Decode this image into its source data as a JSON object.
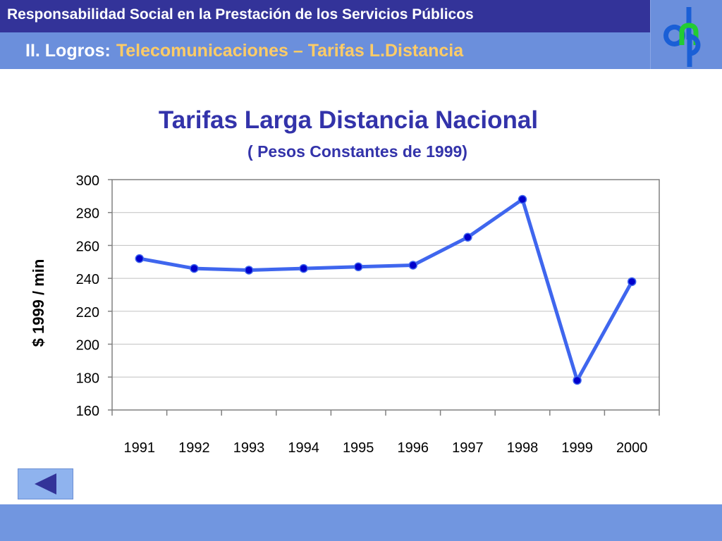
{
  "header": {
    "title": "Responsabilidad Social en la Prestación de los Servicios Públicos",
    "section_label": "II. Logros:",
    "section_topic": "Telecomunicaciones – Tarifas L.Distancia"
  },
  "logo": {
    "icon": "dnp-logo-icon",
    "colors": {
      "d": "#1a5fd6",
      "n": "#22cc33",
      "p": "#1a5fd6"
    }
  },
  "nav": {
    "back_icon": "triangle-left-icon"
  },
  "colors": {
    "header_dark": "#333399",
    "header_light": "#6b8fdc",
    "title": "#3333aa",
    "line": "#3f66ee",
    "marker": "#0000cc"
  },
  "chart_data": {
    "type": "line",
    "title": "Tarifas Larga Distancia Nacional",
    "subtitle": "( Pesos Constantes de 1999)",
    "xlabel": "",
    "ylabel": "$ 1999 / min",
    "categories": [
      "1991",
      "1992",
      "1993",
      "1994",
      "1995",
      "1996",
      "1997",
      "1998",
      "1999",
      "2000"
    ],
    "values": [
      252,
      246,
      245,
      246,
      247,
      248,
      265,
      288,
      178,
      238
    ],
    "ylim": [
      160,
      300
    ],
    "yticks": [
      "160",
      "180",
      "200",
      "220",
      "240",
      "260",
      "280",
      "300"
    ],
    "grid": true,
    "legend": "none"
  }
}
